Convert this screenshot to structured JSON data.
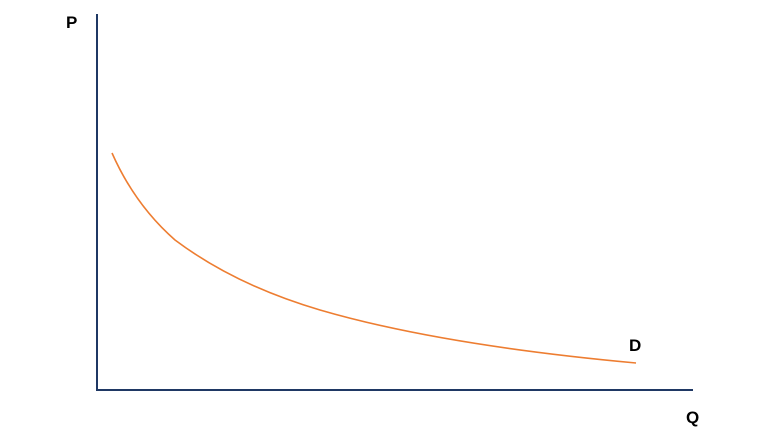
{
  "axes": {
    "y_label": "P",
    "x_label": "Q"
  },
  "curve": {
    "label": "D"
  }
}
